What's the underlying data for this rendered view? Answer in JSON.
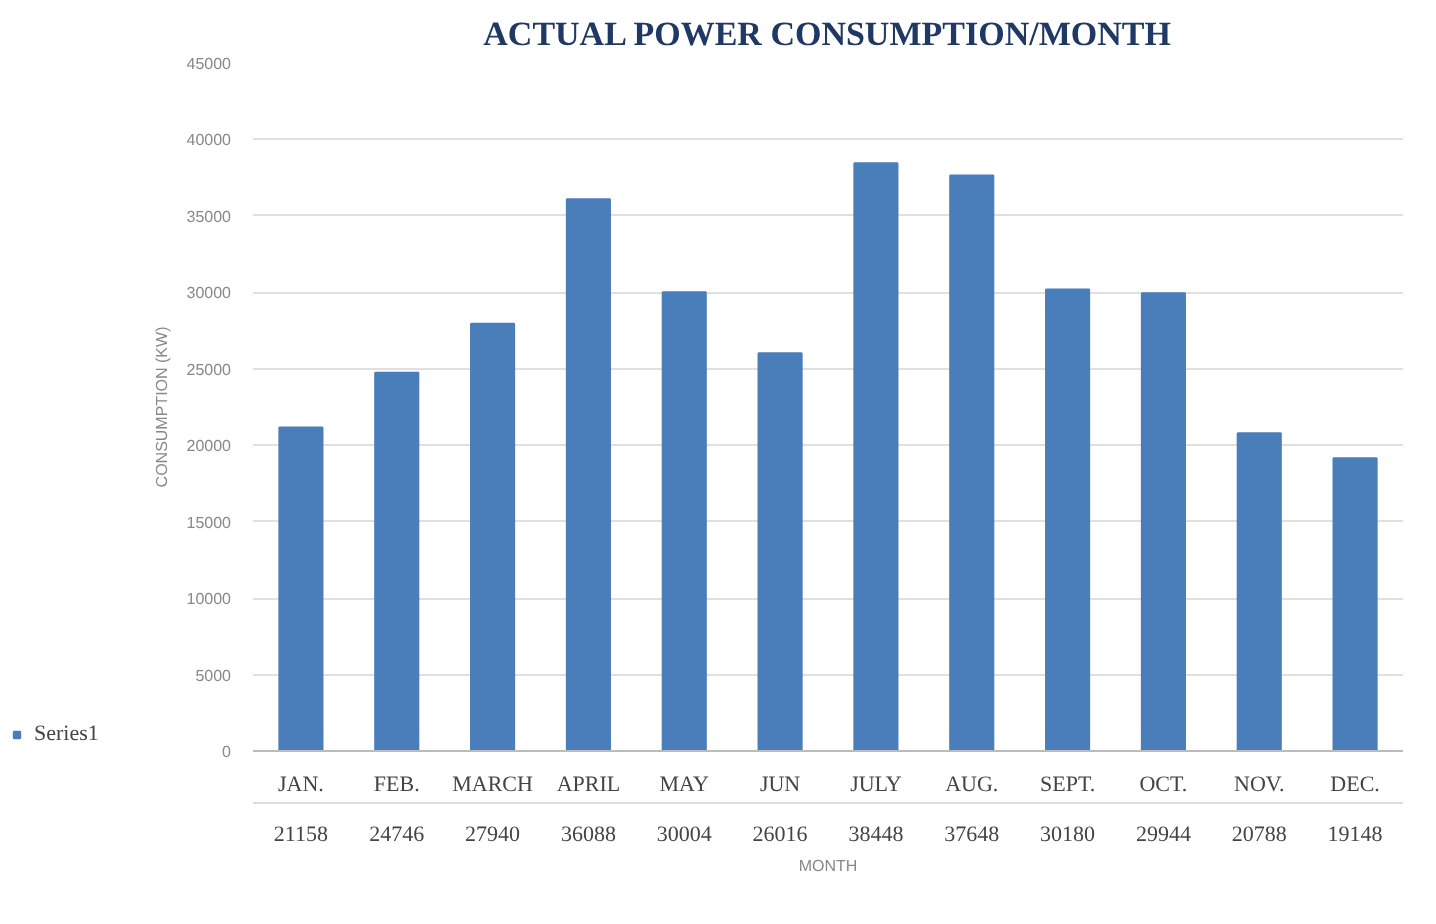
{
  "chart_data": {
    "type": "bar",
    "title": "ACTUAL POWER CONSUMPTION/MONTH",
    "xlabel": "MONTH",
    "ylabel": "CONSUMPTION (KW)",
    "categories": [
      "JAN.",
      "FEB.",
      "MARCH",
      "APRIL",
      "MAY",
      "JUN",
      "JULY",
      "AUG.",
      "SEPT.",
      "OCT.",
      "NOV.",
      "DEC."
    ],
    "series": [
      {
        "name": "Series1",
        "color": "#4a7ebb",
        "values": [
          21158,
          24746,
          27940,
          36088,
          30004,
          26016,
          38448,
          37648,
          30180,
          29944,
          20788,
          19148
        ]
      }
    ],
    "ylim": [
      0,
      45000
    ],
    "yticks": [
      0,
      5000,
      10000,
      15000,
      20000,
      25000,
      30000,
      35000,
      40000,
      45000
    ],
    "grid": "y",
    "legend": "bottom left",
    "data_labels": true
  }
}
